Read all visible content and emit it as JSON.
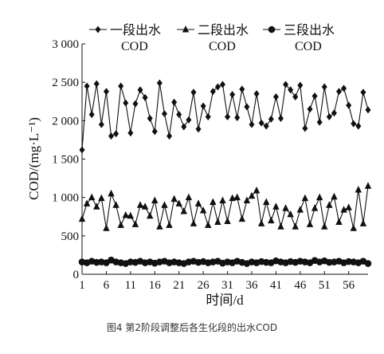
{
  "chart_data": {
    "type": "line",
    "xlabel": "时间/d",
    "ylabel": "COD/(mg·L⁻¹)",
    "xticks": [
      1,
      6,
      11,
      16,
      21,
      26,
      31,
      36,
      41,
      46,
      51,
      56
    ],
    "yticks": [
      "0",
      "500",
      "1 000",
      "1 500",
      "2 000",
      "2 500",
      "3 000"
    ],
    "ylim": [
      0,
      3000
    ],
    "xlim": [
      1,
      60
    ],
    "legend_position": "top",
    "series": [
      {
        "name": "一段出水 COD",
        "name_line1": "一段出水",
        "name_line2": "COD",
        "marker": "diamond",
        "x": [
          1,
          2,
          3,
          4,
          5,
          6,
          7,
          8,
          9,
          10,
          11,
          12,
          13,
          14,
          15,
          16,
          17,
          18,
          19,
          20,
          21,
          22,
          23,
          24,
          25,
          26,
          27,
          28,
          29,
          30,
          31,
          32,
          33,
          34,
          35,
          36,
          37,
          38,
          39,
          40,
          41,
          42,
          43,
          44,
          45,
          46,
          47,
          48,
          49,
          50,
          51,
          52,
          53,
          54,
          55,
          56,
          57,
          58,
          59,
          60
        ],
        "values": [
          1620,
          2450,
          2080,
          2480,
          1950,
          2380,
          1800,
          1830,
          2450,
          2230,
          1840,
          2220,
          2400,
          2300,
          2030,
          1860,
          2490,
          2090,
          1800,
          2240,
          2080,
          1920,
          2010,
          2370,
          1890,
          2190,
          2050,
          2380,
          2440,
          2470,
          2050,
          2340,
          2040,
          2410,
          2180,
          1950,
          2350,
          1970,
          1930,
          2020,
          2310,
          2030,
          2470,
          2400,
          2310,
          2460,
          1900,
          2150,
          2320,
          1980,
          2440,
          2050,
          2100,
          2380,
          2420,
          2200,
          1960,
          1930,
          2370,
          2140
        ]
      },
      {
        "name": "二段出水 COD",
        "name_line1": "二段出水",
        "name_line2": "COD",
        "marker": "triangle",
        "x": [
          1,
          2,
          3,
          4,
          5,
          6,
          7,
          8,
          9,
          10,
          11,
          12,
          13,
          14,
          15,
          16,
          17,
          18,
          19,
          20,
          21,
          22,
          23,
          24,
          25,
          26,
          27,
          28,
          29,
          30,
          31,
          32,
          33,
          34,
          35,
          36,
          37,
          38,
          39,
          40,
          41,
          42,
          43,
          44,
          45,
          46,
          47,
          48,
          49,
          50,
          51,
          52,
          53,
          54,
          55,
          56,
          57,
          58,
          59,
          60
        ],
        "values": [
          720,
          920,
          1000,
          880,
          990,
          600,
          1050,
          900,
          640,
          770,
          760,
          650,
          900,
          880,
          760,
          960,
          620,
          900,
          640,
          980,
          920,
          820,
          1000,
          660,
          920,
          830,
          640,
          940,
          680,
          960,
          690,
          990,
          1000,
          720,
          960,
          1020,
          1090,
          660,
          940,
          700,
          880,
          620,
          860,
          780,
          620,
          840,
          990,
          650,
          860,
          1000,
          620,
          900,
          1010,
          680,
          840,
          870,
          600,
          1100,
          660,
          1150
        ]
      },
      {
        "name": "三段出水 COD",
        "name_line1": "三段出水",
        "name_line2": "COD",
        "marker": "circle",
        "x": [
          1,
          2,
          3,
          4,
          5,
          6,
          7,
          8,
          9,
          10,
          11,
          12,
          13,
          14,
          15,
          16,
          17,
          18,
          19,
          20,
          21,
          22,
          23,
          24,
          25,
          26,
          27,
          28,
          29,
          30,
          31,
          32,
          33,
          34,
          35,
          36,
          37,
          38,
          39,
          40,
          41,
          42,
          43,
          44,
          45,
          46,
          47,
          48,
          49,
          50,
          51,
          52,
          53,
          54,
          55,
          56,
          57,
          58,
          59,
          60
        ],
        "values": [
          160,
          150,
          170,
          155,
          160,
          150,
          185,
          160,
          150,
          140,
          160,
          155,
          170,
          150,
          160,
          145,
          160,
          170,
          150,
          160,
          150,
          140,
          160,
          170,
          155,
          165,
          150,
          160,
          170,
          145,
          160,
          150,
          170,
          155,
          140,
          160,
          150,
          165,
          155,
          150,
          175,
          160,
          150,
          165,
          155,
          170,
          160,
          150,
          180,
          160,
          175,
          155,
          160,
          170,
          150,
          165,
          160,
          150,
          170,
          140
        ]
      }
    ]
  },
  "caption": "图4   第2阶段调整后各生化段的出水COD"
}
